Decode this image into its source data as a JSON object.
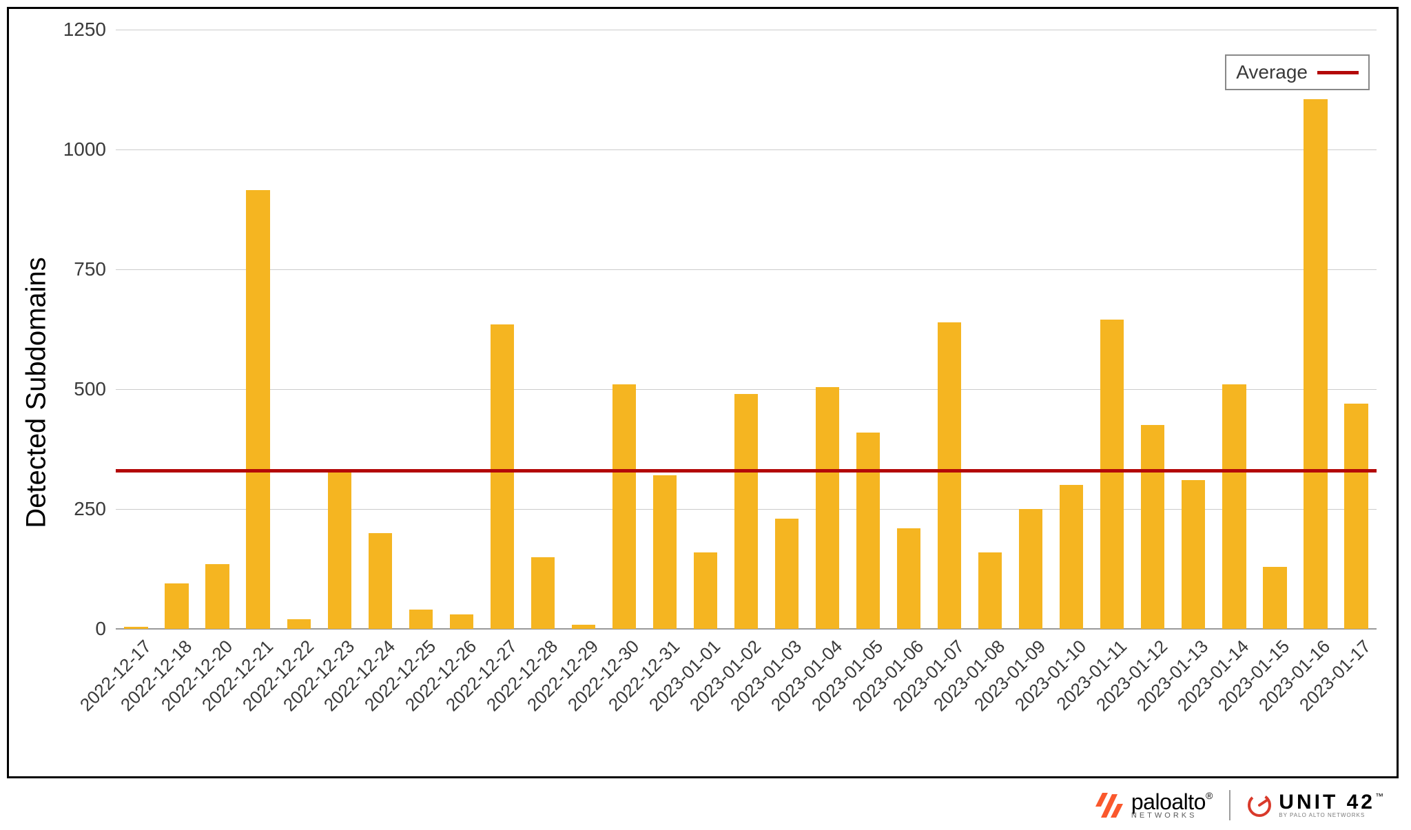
{
  "chart": {
    "type": "bar",
    "y_axis_label": "Detected Subdomains",
    "ylim": [
      0,
      1250
    ],
    "ytick_step": 250,
    "yticks": [
      0,
      250,
      500,
      750,
      1000,
      1250
    ],
    "background_color": "#ffffff",
    "grid_color": "#cccccc",
    "baseline_color": "#999999",
    "bar_color": "#f5b521",
    "bar_width_ratio": 0.58,
    "y_label_fontsize": 40,
    "tick_fontsize": 28,
    "x_label_fontsize": 26,
    "x_label_rotation_deg": -45,
    "average_line": {
      "label": "Average",
      "value": 330,
      "color": "#b30808",
      "thickness_px": 5
    },
    "legend": {
      "position": "top-right",
      "border_color": "#888888",
      "background": "#ffffff",
      "fontsize": 28
    },
    "categories": [
      "2022-12-17",
      "2022-12-18",
      "2022-12-20",
      "2022-12-21",
      "2022-12-22",
      "2022-12-23",
      "2022-12-24",
      "2022-12-25",
      "2022-12-26",
      "2022-12-27",
      "2022-12-28",
      "2022-12-29",
      "2022-12-30",
      "2022-12-31",
      "2023-01-01",
      "2023-01-02",
      "2023-01-03",
      "2023-01-04",
      "2023-01-05",
      "2023-01-06",
      "2023-01-07",
      "2023-01-08",
      "2023-01-09",
      "2023-01-10",
      "2023-01-11",
      "2023-01-12",
      "2023-01-13",
      "2023-01-14",
      "2023-01-15",
      "2023-01-16",
      "2023-01-17"
    ],
    "values": [
      5,
      95,
      135,
      915,
      20,
      330,
      200,
      40,
      30,
      635,
      150,
      8,
      510,
      320,
      160,
      490,
      230,
      505,
      410,
      210,
      640,
      160,
      250,
      300,
      645,
      425,
      310,
      510,
      130,
      1105,
      470
    ]
  },
  "footer": {
    "paloalto_text": "paloalto",
    "paloalto_sub": "NETWORKS",
    "paloalto_reg": "®",
    "paloalto_color": "#fa582d",
    "unit42_text": "UNIT 42",
    "unit42_sub": "BY PALO ALTO NETWORKS",
    "unit42_tm": "™",
    "unit42_color": "#d93a2b"
  }
}
